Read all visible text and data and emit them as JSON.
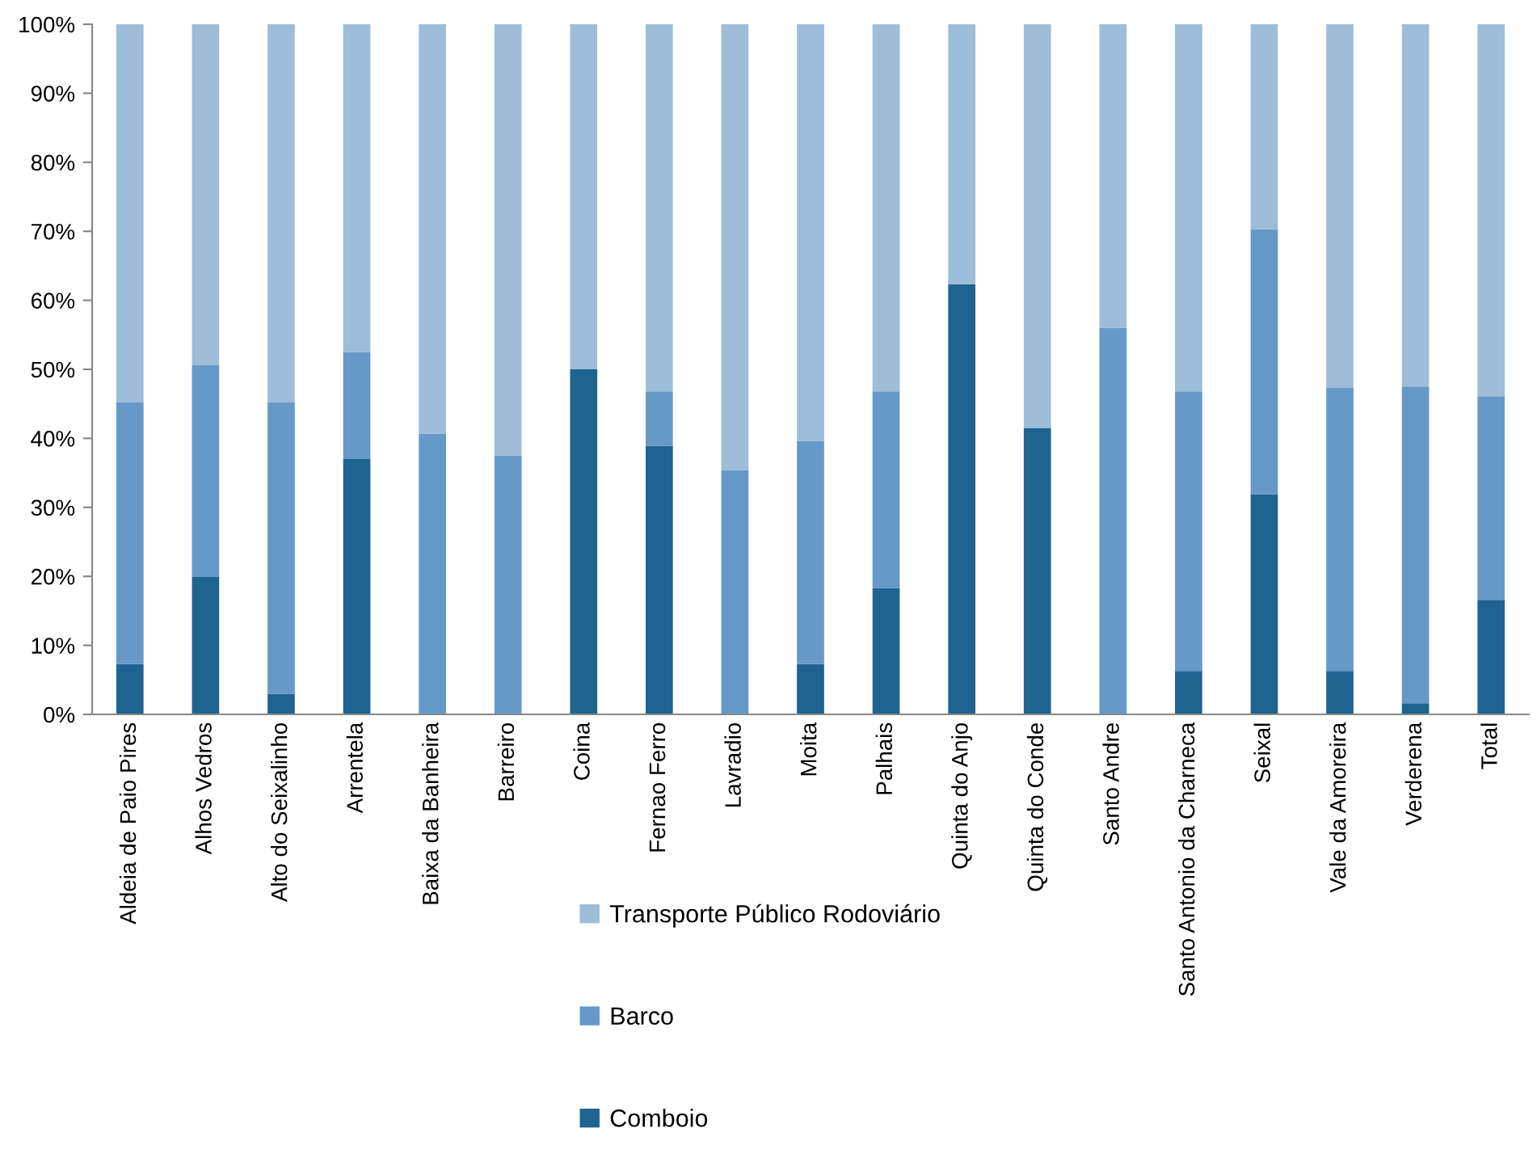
{
  "chart_data": {
    "type": "bar",
    "stacked": true,
    "categories": [
      "Aldeia de Paio Pires",
      "Alhos Vedros",
      "Alto do Seixalinho",
      "Arrentela",
      "Baixa da Banheira",
      "Barreiro",
      "Coina",
      "Fernao Ferro",
      "Lavradio",
      "Moita",
      "Palhais",
      "Quinta do Anjo",
      "Quinta do Conde",
      "Santo Andre",
      "Santo Antonio da Charneca",
      "Seixal",
      "Vale da Amoreira",
      "Verderena",
      "Total"
    ],
    "series": [
      {
        "name": "Comboio",
        "color": "#1f6391",
        "values": [
          7.3,
          19.9,
          3.0,
          37.0,
          0,
          0,
          50.0,
          38.9,
          0,
          7.3,
          18.3,
          62.3,
          41.5,
          0,
          6.3,
          31.9,
          6.3,
          1.6,
          16.6
        ]
      },
      {
        "name": "Barco",
        "color": "#6699c7",
        "values": [
          37.9,
          30.7,
          42.2,
          15.5,
          40.7,
          37.5,
          0,
          7.9,
          35.4,
          32.3,
          28.5,
          0,
          0,
          56.0,
          40.5,
          38.4,
          41.0,
          45.9,
          29.5
        ]
      },
      {
        "name": "Transporte Público Rodoviário",
        "color": "#9dbdd9",
        "values": [
          54.8,
          49.4,
          54.8,
          47.5,
          59.3,
          62.5,
          50.0,
          53.2,
          64.6,
          60.4,
          53.2,
          37.7,
          58.5,
          44.0,
          53.2,
          29.7,
          52.7,
          52.5,
          53.9
        ]
      }
    ],
    "ylim": [
      0,
      100
    ],
    "yticks": [
      {
        "value": 0,
        "label": "0%"
      },
      {
        "value": 10,
        "label": "10%"
      },
      {
        "value": 20,
        "label": "20%"
      },
      {
        "value": 30,
        "label": "30%"
      },
      {
        "value": 40,
        "label": "40%"
      },
      {
        "value": 50,
        "label": "50%"
      },
      {
        "value": 60,
        "label": "60%"
      },
      {
        "value": 70,
        "label": "70%"
      },
      {
        "value": 80,
        "label": "80%"
      },
      {
        "value": 90,
        "label": "90%"
      },
      {
        "value": 100,
        "label": "100%"
      }
    ],
    "legend": "bottom"
  }
}
